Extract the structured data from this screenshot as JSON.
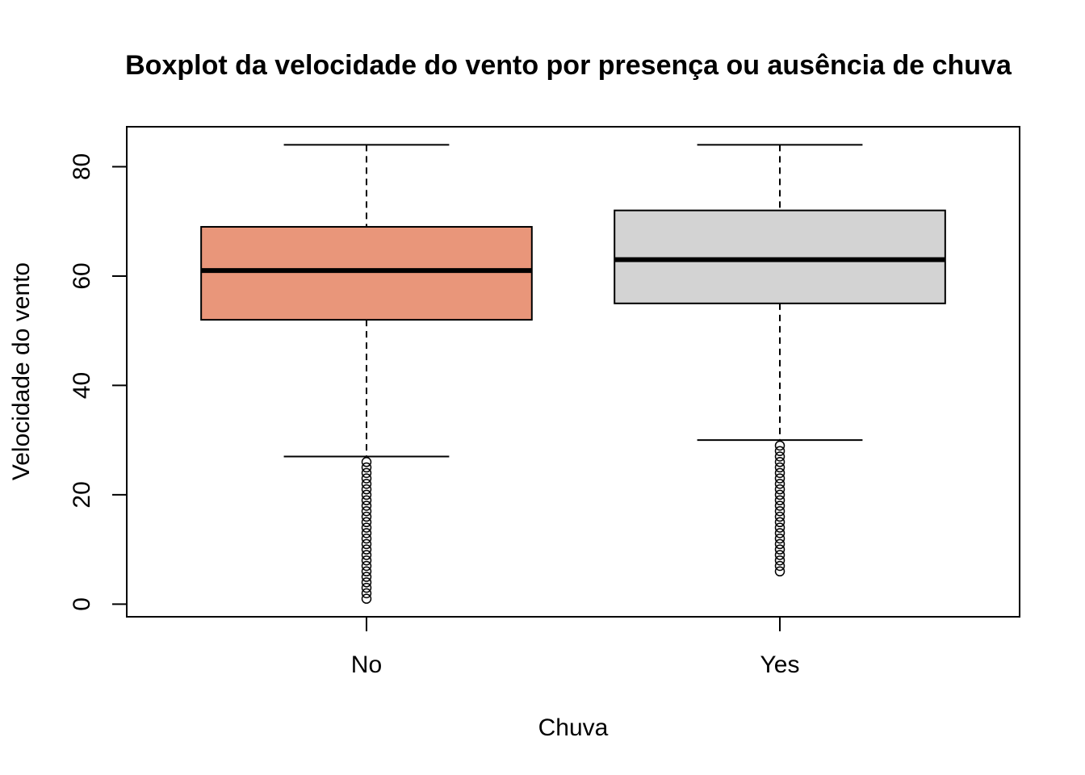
{
  "chart_data": {
    "type": "boxplot",
    "title": "Boxplot da velocidade do vento por presença ou ausência de chuva",
    "xlabel": "Chuva",
    "ylabel": "Velocidade do vento",
    "categories": [
      "No",
      "Yes"
    ],
    "ylim": [
      -2.3,
      87.3
    ],
    "xlim": [
      0.42,
      2.58
    ],
    "yticks": [
      0,
      20,
      40,
      60,
      80
    ],
    "grid": false,
    "boxes": [
      {
        "category": "No",
        "color": "#E9967A",
        "whisker_low": 27,
        "q1": 52,
        "median": 61,
        "q3": 69,
        "whisker_high": 84,
        "outliers": [
          1,
          2,
          3,
          4,
          5,
          6,
          7,
          8,
          9,
          10,
          11,
          12,
          13,
          14,
          15,
          16,
          17,
          18,
          19,
          20,
          21,
          22,
          23,
          24,
          25,
          26
        ]
      },
      {
        "category": "Yes",
        "color": "#D3D3D3",
        "whisker_low": 30,
        "q1": 55,
        "median": 63,
        "q3": 72,
        "whisker_high": 84,
        "outliers": [
          6,
          7,
          8,
          9,
          10,
          11,
          12,
          13,
          14,
          15,
          16,
          17,
          18,
          19,
          20,
          21,
          22,
          23,
          24,
          25,
          26,
          27,
          28,
          29
        ]
      }
    ]
  }
}
